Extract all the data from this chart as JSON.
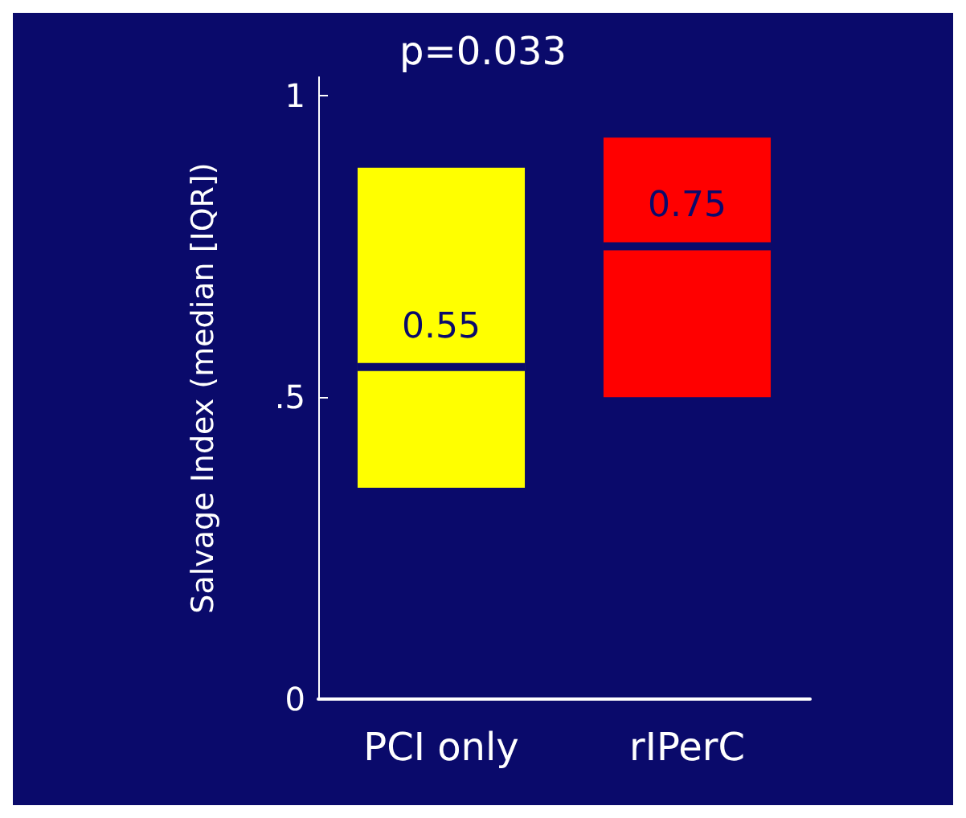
{
  "chart_data": {
    "type": "box",
    "ylabel": "Salvage Index (median [IQR])",
    "categories": [
      "PCI only",
      "rIPerC"
    ],
    "boxes": [
      {
        "low": 0.35,
        "q1": 0.35,
        "median": 0.55,
        "q3": 0.88,
        "high": 0.88
      },
      {
        "low": 0.5,
        "q1": 0.5,
        "median": 0.75,
        "q3": 0.93,
        "high": 0.93
      }
    ],
    "colors": [
      "#ffff00",
      "#ff0000"
    ],
    "ylim": [
      0,
      1.03
    ],
    "yticks": [
      {
        "value": 0,
        "label": "0"
      },
      {
        "value": 0.5,
        "label": ".5"
      },
      {
        "value": 1,
        "label": "1"
      }
    ],
    "annotations": [
      "p=0.033",
      {
        "text": "0.55",
        "x": "PCI only",
        "y": 0.55
      },
      {
        "text": "0.75",
        "x": "rIPerC",
        "y": 0.75
      }
    ],
    "grid": false
  }
}
